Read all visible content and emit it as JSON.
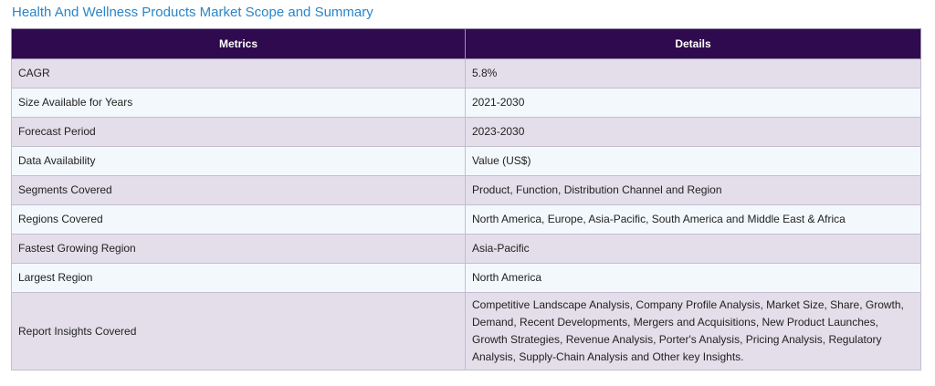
{
  "title": "Health And Wellness Products Market Scope and Summary",
  "colors": {
    "title": "#2a86c8",
    "header_bg": "#2f0a4e",
    "row_odd_bg": "#e3deea",
    "row_even_bg": "#f3f8fc"
  },
  "table": {
    "headers": [
      "Metrics",
      "Details"
    ],
    "rows": [
      {
        "metric": "CAGR",
        "detail": "5.8%"
      },
      {
        "metric": "Size Available for Years",
        "detail": "2021-2030"
      },
      {
        "metric": "Forecast Period",
        "detail": "2023-2030"
      },
      {
        "metric": "Data Availability",
        "detail": "Value (US$)"
      },
      {
        "metric": "Segments Covered",
        "detail": "Product, Function, Distribution Channel and Region"
      },
      {
        "metric": "Regions Covered",
        "detail": "North America, Europe, Asia-Pacific, South America and Middle East & Africa"
      },
      {
        "metric": "Fastest Growing Region",
        "detail": "Asia-Pacific"
      },
      {
        "metric": "Largest Region",
        "detail": "North America"
      },
      {
        "metric": "Report Insights Covered",
        "detail": "Competitive Landscape Analysis, Company Profile Analysis, Market Size, Share, Growth, Demand, Recent Developments, Mergers and Acquisitions, New Product Launches, Growth Strategies, Revenue Analysis, Porter's Analysis, Pricing Analysis, Regulatory Analysis, Supply-Chain Analysis and Other key Insights."
      }
    ]
  }
}
